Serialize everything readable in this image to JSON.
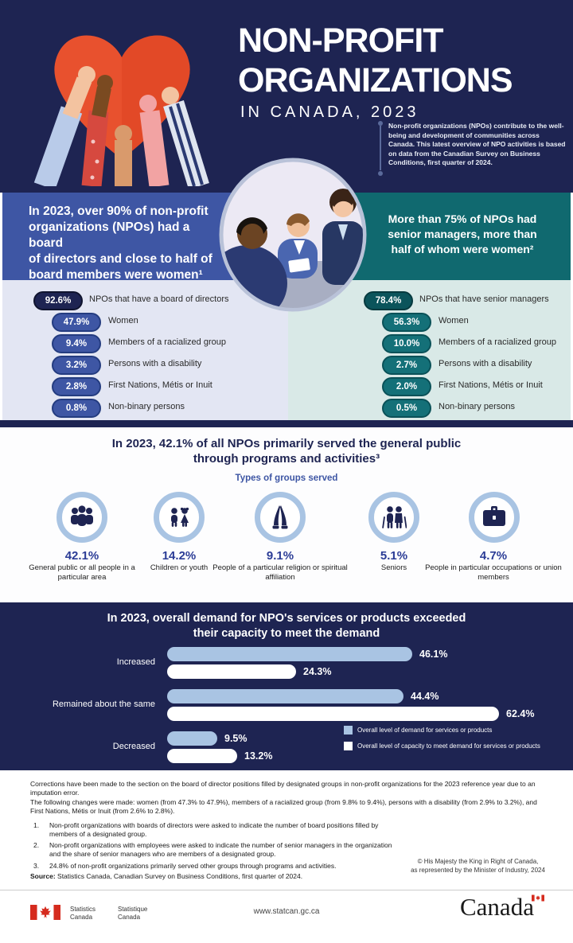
{
  "colors": {
    "navy": "#1e2452",
    "blue": "#3e56a4",
    "teal": "#10696f",
    "light_blue": "#a9c4e3",
    "light_lavender_bg": "#e3e6f3",
    "light_teal_bg": "#d9e9e7",
    "flag_red": "#d52b1e"
  },
  "header": {
    "title_line1": "NON-PROFIT",
    "title_line2": "ORGANIZATIONS",
    "subtitle": "IN CANADA, 2023",
    "intro": "Non-profit organizations (NPOs) contribute to the well-being and development of communities across Canada. This latest overview of NPO activities is based on data from the Canadian Survey on Business Conditions, first quarter of 2024."
  },
  "board_section": {
    "headline_lines": [
      "In 2023, over 90% of non-profit",
      "organizations (NPOs) had a board",
      "of directors and close to half of",
      "board members were women¹"
    ],
    "stats": [
      {
        "value": "92.6%",
        "label": "NPOs that have a board of directors"
      },
      {
        "value": "47.9%",
        "label": "Women"
      },
      {
        "value": "9.4%",
        "label": "Members of a racialized group"
      },
      {
        "value": "3.2%",
        "label": "Persons with a disability"
      },
      {
        "value": "2.8%",
        "label": "First Nations, Métis or Inuit"
      },
      {
        "value": "0.8%",
        "label": "Non-binary persons"
      }
    ]
  },
  "managers_section": {
    "headline_lines": [
      "More than 75% of NPOs had",
      "senior managers, more than",
      "half of whom were women²"
    ],
    "stats": [
      {
        "value": "78.4%",
        "label": "NPOs that have senior managers"
      },
      {
        "value": "56.3%",
        "label": "Women"
      },
      {
        "value": "10.0%",
        "label": "Members of a racialized group"
      },
      {
        "value": "2.7%",
        "label": "Persons with a disability"
      },
      {
        "value": "2.0%",
        "label": "First Nations, Métis or Inuit"
      },
      {
        "value": "0.5%",
        "label": "Non-binary persons"
      }
    ]
  },
  "groups_section": {
    "headline_lines": [
      "In 2023, 42.1% of all NPOs primarily served the general public",
      "through programs and activities³"
    ],
    "subheading": "Types of groups served",
    "items": [
      {
        "value": "42.1%",
        "label": "General public or all people in a particular area",
        "icon": "people-group-icon"
      },
      {
        "value": "14.2%",
        "label": "Children or youth",
        "icon": "children-icon"
      },
      {
        "value": "9.1%",
        "label": "People of a particular religion or spiritual affiliation",
        "icon": "praying-hands-icon"
      },
      {
        "value": "5.1%",
        "label": "Seniors",
        "icon": "seniors-icon"
      },
      {
        "value": "4.7%",
        "label": "People in particular occupations or union members",
        "icon": "briefcase-icon"
      }
    ]
  },
  "demand_chart": {
    "headline_lines": [
      "In 2023, overall demand for NPO's services or products exceeded",
      "their capacity to meet the demand"
    ],
    "rows": [
      {
        "label": "Increased",
        "demand": 46.1,
        "demand_label": "46.1%",
        "capacity": 24.3,
        "capacity_label": "24.3%"
      },
      {
        "label": "Remained about the same",
        "demand": 44.4,
        "demand_label": "44.4%",
        "capacity": 62.4,
        "capacity_label": "62.4%"
      },
      {
        "label": "Decreased",
        "demand": 9.5,
        "demand_label": "9.5%",
        "capacity": 13.2,
        "capacity_label": "13.2%"
      }
    ],
    "legend": [
      {
        "label": "Overall level of demand for services or products",
        "color": "#a9c4e3"
      },
      {
        "label": "Overall level of capacity to meet demand for services or products",
        "color": "#ffffff"
      }
    ]
  },
  "chart_data": [
    {
      "type": "bar",
      "title": "NPOs that have a board of directors — board positions filled by designated groups",
      "categories": [
        "NPOs that have a board of directors",
        "Women",
        "Members of a racialized group",
        "Persons with a disability",
        "First Nations, Métis or Inuit",
        "Non-binary persons"
      ],
      "values": [
        92.6,
        47.9,
        9.4,
        3.2,
        2.8,
        0.8
      ],
      "unit": "%"
    },
    {
      "type": "bar",
      "title": "NPOs that have senior managers — senior managers who are members of designated groups",
      "categories": [
        "NPOs that have senior managers",
        "Women",
        "Members of a racialized group",
        "Persons with a disability",
        "First Nations, Métis or Inuit",
        "Non-binary persons"
      ],
      "values": [
        78.4,
        56.3,
        10.0,
        2.7,
        2.0,
        0.5
      ],
      "unit": "%"
    },
    {
      "type": "bar",
      "title": "Types of groups served",
      "categories": [
        "General public or all people in a particular area",
        "Children or youth",
        "People of a particular religion or spiritual affiliation",
        "Seniors",
        "People in particular occupations or union members"
      ],
      "values": [
        42.1,
        14.2,
        9.1,
        5.1,
        4.7
      ],
      "unit": "%"
    },
    {
      "type": "bar",
      "orientation": "horizontal",
      "title": "In 2023, overall demand for NPO's services or products exceeded their capacity to meet the demand",
      "categories": [
        "Increased",
        "Remained about the same",
        "Decreased"
      ],
      "series": [
        {
          "name": "Overall level of demand for services or products",
          "values": [
            46.1,
            44.4,
            9.5
          ]
        },
        {
          "name": "Overall level of capacity to meet demand for services or products",
          "values": [
            24.3,
            62.4,
            13.2
          ]
        }
      ],
      "unit": "%",
      "legend_position": "bottom-right",
      "xlim": [
        0,
        65
      ]
    }
  ],
  "footnotes": {
    "correction1": "Corrections have been made to the section on the board of director positions filled by designated groups in non-profit organizations for the 2023 reference year due to an imputation error.",
    "correction2": "The following changes were made: women (from 47.3% to 47.9%), members of a racialized group (from 9.8% to 9.4%), persons with a disability (from 2.9% to 3.2%), and First Nations, Métis or Inuit (from 2.6% to 2.8%).",
    "note1_num": "1.",
    "note1": "Non-profit organizations with boards of directors were asked to indicate the number of board positions filled by members of a designated group.",
    "note2_num": "2.",
    "note2": "Non-profit organizations with employees were asked to indicate the number of senior managers in the organization and the share of senior managers who are members of a designated group.",
    "note3_num": "3.",
    "note3": "24.8% of non-profit organizations primarily served other groups through programs and activities.",
    "source_label": "Source:",
    "source_text": "Statistics Canada, Canadian Survey on Business Conditions, first quarter of 2024.",
    "copyright_line1": "© His Majesty the King in Right of Canada,",
    "copyright_line2": "as represented by the Minister of Industry, 2024"
  },
  "footer": {
    "agency_en_line1": "Statistics",
    "agency_en_line2": "Canada",
    "agency_fr_line1": "Statistique",
    "agency_fr_line2": "Canada",
    "url": "www.statcan.gc.ca",
    "wordmark": "Canada"
  }
}
